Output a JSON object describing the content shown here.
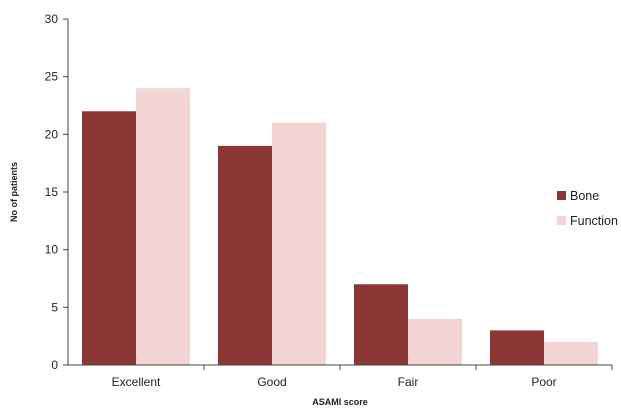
{
  "chart_data": {
    "type": "bar",
    "categories": [
      "Excellent",
      "Good",
      "Fair",
      "Poor"
    ],
    "series": [
      {
        "name": "Bone",
        "values": [
          22,
          19,
          7,
          3
        ],
        "color": "#8b3535"
      },
      {
        "name": "Function",
        "values": [
          24,
          21,
          4,
          2
        ],
        "color": "#f2d4d4"
      }
    ],
    "xlabel": "ASAMI score",
    "ylabel": "No of patients",
    "ylim": [
      0,
      30
    ],
    "yticks": [
      0,
      5,
      10,
      15,
      20,
      25,
      30
    ],
    "grid": false,
    "legend": "right"
  }
}
